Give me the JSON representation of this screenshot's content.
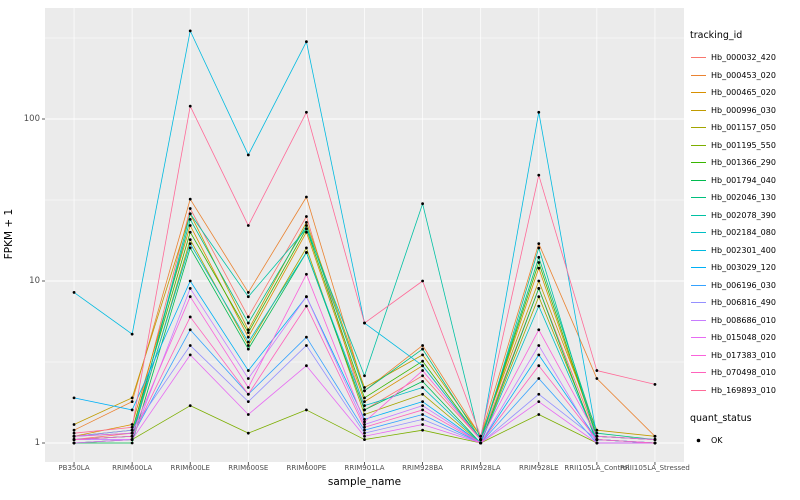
{
  "figure": {
    "panel_bg": "#EBEBEB",
    "grid_color": "#FFFFFF",
    "tick_color": "#333333",
    "legend": {
      "tracking_title": "tracking_id",
      "quant_title": "quant_status",
      "quant_label": "OK"
    }
  },
  "chart_data": {
    "type": "line",
    "title": "",
    "x_label": "sample_name",
    "y_label": "FPKM + 1",
    "y_scale": "log10",
    "ylim": [
      0.95,
      400
    ],
    "y_ticks": [
      1,
      10,
      100
    ],
    "y_minor_ticks": [
      3.162,
      31.62,
      316.2
    ],
    "grid": true,
    "legend_position": "right",
    "point_color": "#000000",
    "categories": [
      "PB350LA",
      "RRIM600LA",
      "RRIM600LE",
      "RRIM600SE",
      "RRIM600PE",
      "RRIM901LA",
      "RRIM928BA",
      "RRIM928LA",
      "RRIM928LE",
      "RRII105LA_Control",
      "RRII105LA_Stressed"
    ],
    "series": [
      {
        "name": "Hb_000032_420",
        "color": "#F8766D",
        "values": [
          1.05,
          1.15,
          28,
          6,
          25,
          1.6,
          2.6,
          1.05,
          9,
          1.1,
          1.05
        ]
      },
      {
        "name": "Hb_000453_020",
        "color": "#EA8331",
        "values": [
          1.2,
          1.8,
          32,
          8.5,
          33,
          2.1,
          4,
          1.1,
          17,
          2.5,
          1.1
        ]
      },
      {
        "name": "Hb_000465_020",
        "color": "#D89000",
        "values": [
          1.1,
          1.3,
          22,
          4.5,
          20,
          1.8,
          3,
          1.05,
          12,
          1.1,
          1.05
        ]
      },
      {
        "name": "Hb_000996_030",
        "color": "#C09B00",
        "values": [
          1.3,
          1.9,
          26,
          5,
          23,
          2.2,
          3.5,
          1.1,
          10,
          1.2,
          1.1
        ]
      },
      {
        "name": "Hb_001157_050",
        "color": "#A3A500",
        "values": [
          1.05,
          1.1,
          18,
          4,
          16,
          1.5,
          2,
          1,
          8,
          1.05,
          1
        ]
      },
      {
        "name": "Hb_001195_550",
        "color": "#7CAE00",
        "values": [
          1,
          1.05,
          1.7,
          1.15,
          1.6,
          1.05,
          1.2,
          1,
          1.5,
          1,
          1
        ]
      },
      {
        "name": "Hb_001366_290",
        "color": "#39B600",
        "values": [
          1.1,
          1.2,
          20,
          4.8,
          21,
          1.9,
          3.2,
          1.05,
          13,
          1.1,
          1.05
        ]
      },
      {
        "name": "Hb_001794_040",
        "color": "#00BB4E",
        "values": [
          1,
          1,
          16,
          3.8,
          15,
          1.6,
          2.4,
          1,
          9,
          1,
          1
        ]
      },
      {
        "name": "Hb_002046_130",
        "color": "#00BF7D",
        "values": [
          1.05,
          1.1,
          24,
          5.5,
          22,
          2.1,
          3.8,
          1.05,
          14,
          1.15,
          1.05
        ]
      },
      {
        "name": "Hb_002078_390",
        "color": "#00C1A3",
        "values": [
          1,
          1.05,
          26,
          8,
          21,
          2.6,
          30,
          1,
          16,
          1.05,
          1
        ]
      },
      {
        "name": "Hb_002184_080",
        "color": "#00BFC4",
        "values": [
          1.1,
          1.15,
          17,
          4.2,
          15,
          1.7,
          2.2,
          1,
          7,
          1.05,
          1
        ]
      },
      {
        "name": "Hb_002301_400",
        "color": "#00BAE0",
        "values": [
          8.5,
          4.7,
          350,
          60,
          300,
          5.5,
          3,
          1.05,
          110,
          1.1,
          1.05
        ]
      },
      {
        "name": "Hb_003029_120",
        "color": "#00B0F6",
        "values": [
          1.9,
          1.6,
          10,
          2.8,
          8,
          1.4,
          1.8,
          1,
          3.5,
          1.05,
          1
        ]
      },
      {
        "name": "Hb_006196_030",
        "color": "#35A2FF",
        "values": [
          1.05,
          1.1,
          5,
          2,
          4.5,
          1.2,
          1.5,
          1,
          2.5,
          1,
          1
        ]
      },
      {
        "name": "Hb_006816_490",
        "color": "#9590FF",
        "values": [
          1.1,
          1.2,
          4,
          1.8,
          4,
          1.15,
          1.4,
          1,
          2,
          1.05,
          1
        ]
      },
      {
        "name": "Hb_008686_010",
        "color": "#C77CFF",
        "values": [
          1.05,
          1.05,
          9,
          2.5,
          8,
          1.3,
          1.7,
          1,
          4,
          1,
          1
        ]
      },
      {
        "name": "Hb_015048_020",
        "color": "#E76BF3",
        "values": [
          1,
          1.05,
          3.5,
          1.5,
          3,
          1.1,
          1.3,
          1,
          1.8,
          1,
          1
        ]
      },
      {
        "name": "Hb_017383_010",
        "color": "#FA62DB",
        "values": [
          1.1,
          1.15,
          8,
          2.2,
          11,
          1.35,
          2.8,
          1.05,
          5,
          1.1,
          1.05
        ]
      },
      {
        "name": "Hb_070498_010",
        "color": "#FF62BC",
        "values": [
          1.05,
          1.1,
          6,
          2,
          7,
          1.25,
          1.6,
          1,
          3,
          1.05,
          1
        ]
      },
      {
        "name": "Hb_169893_010",
        "color": "#FF6A98",
        "values": [
          1.15,
          1.25,
          120,
          22,
          110,
          5.5,
          10,
          1.1,
          45,
          2.8,
          2.3
        ]
      }
    ]
  }
}
